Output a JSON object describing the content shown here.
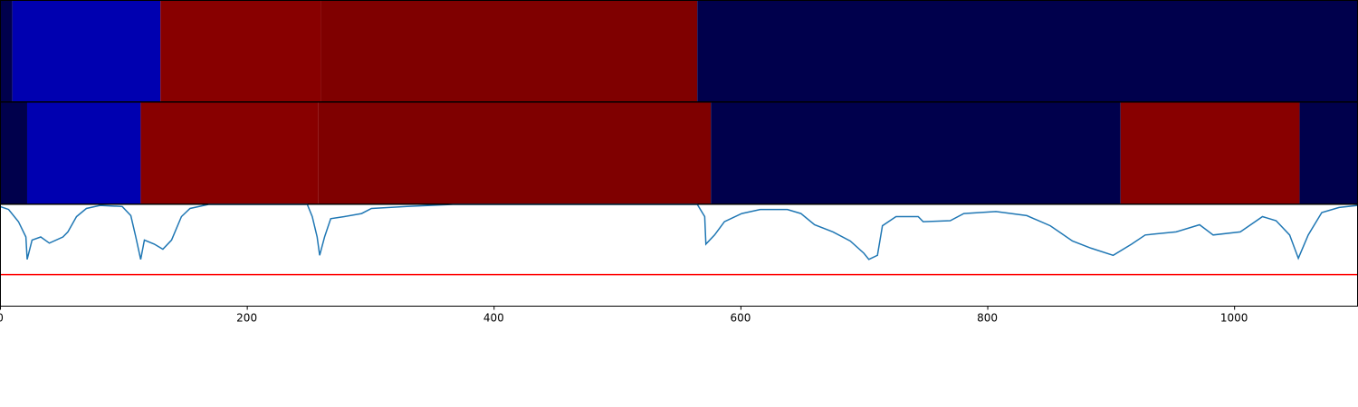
{
  "chart_data": {
    "type": "segmented-line",
    "xlim": [
      0,
      1100
    ],
    "xticks": [
      0,
      200,
      400,
      600,
      800,
      1000
    ],
    "strips": [
      {
        "edges": [
          0,
          10,
          130,
          260,
          565,
          1100
        ],
        "colors": [
          "#00004c",
          "#0000b0",
          "#880000",
          "#7f0000",
          "#00004c"
        ]
      },
      {
        "edges": [
          0,
          22,
          114,
          258,
          576,
          908,
          1053,
          1100
        ],
        "colors": [
          "#00004c",
          "#0000b0",
          "#880000",
          "#7f0000",
          "#00004c",
          "#880000",
          "#00004c"
        ]
      }
    ],
    "ylim": [
      0,
      1
    ],
    "threshold": 0.31,
    "threshold_color": "#ff0000",
    "series": [
      {
        "color": "#1f77b4",
        "x": [
          0,
          7,
          15,
          21,
          22,
          26,
          33,
          40,
          51,
          55,
          62,
          70,
          81,
          99,
          106,
          110,
          114,
          117,
          125,
          132,
          139,
          147,
          154,
          169,
          249,
          253,
          257,
          259,
          263,
          268,
          279,
          293,
          301,
          330,
          367,
          565,
          571,
          572,
          579,
          587,
          601,
          616,
          638,
          649,
          660,
          675,
          689,
          700,
          704,
          711,
          715,
          726,
          744,
          748,
          770,
          781,
          807,
          832,
          851,
          869,
          884,
          902,
          917,
          928,
          953,
          972,
          983,
          1005,
          1023,
          1034,
          1045,
          1052,
          1060,
          1071,
          1085,
          1100
        ],
        "values": [
          0.98,
          0.95,
          0.83,
          0.68,
          0.46,
          0.65,
          0.68,
          0.62,
          0.68,
          0.73,
          0.88,
          0.96,
          0.99,
          0.98,
          0.89,
          0.68,
          0.46,
          0.65,
          0.61,
          0.56,
          0.65,
          0.88,
          0.96,
          1.0,
          1.0,
          0.88,
          0.68,
          0.5,
          0.68,
          0.86,
          0.88,
          0.91,
          0.96,
          0.98,
          1.0,
          1.0,
          0.88,
          0.61,
          0.7,
          0.83,
          0.91,
          0.95,
          0.95,
          0.91,
          0.8,
          0.73,
          0.64,
          0.52,
          0.46,
          0.5,
          0.79,
          0.88,
          0.88,
          0.83,
          0.84,
          0.91,
          0.93,
          0.89,
          0.79,
          0.64,
          0.57,
          0.5,
          0.61,
          0.7,
          0.73,
          0.8,
          0.7,
          0.73,
          0.88,
          0.84,
          0.7,
          0.47,
          0.7,
          0.92,
          0.97,
          0.99
        ]
      }
    ]
  }
}
